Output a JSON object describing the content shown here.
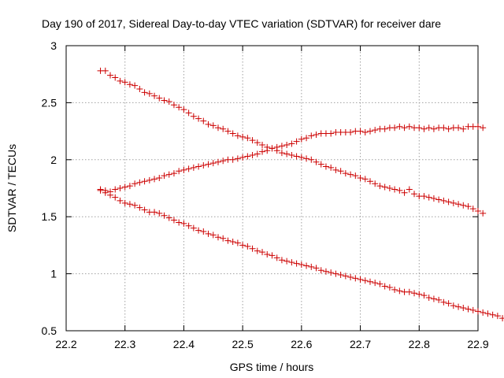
{
  "chart_data": {
    "type": "scatter",
    "title": "Day 190 of 2017, Sidereal Day-to-day VTEC variation (SDTVAR) for receiver dare",
    "xlabel": "GPS time / hours",
    "ylabel": "SDTVAR / TECUs",
    "xlim": [
      22.2,
      22.9
    ],
    "ylim": [
      0.5,
      3.0
    ],
    "xticks": [
      "22.2",
      "22.3",
      "22.4",
      "22.5",
      "22.6",
      "22.7",
      "22.8",
      "22.9"
    ],
    "yticks": [
      "0.5",
      "1",
      "1.5",
      "2",
      "2.5",
      "3"
    ],
    "grid": true,
    "marker": "+",
    "color": "#cc0000",
    "series": [
      {
        "name": "series-1",
        "x_start": 22.2583,
        "x_step": 0.008333,
        "values": [
          2.78,
          2.78,
          2.74,
          2.72,
          2.69,
          2.68,
          2.66,
          2.65,
          2.62,
          2.59,
          2.58,
          2.56,
          2.54,
          2.52,
          2.51,
          2.48,
          2.46,
          2.44,
          2.41,
          2.38,
          2.36,
          2.34,
          2.31,
          2.3,
          2.28,
          2.27,
          2.25,
          2.23,
          2.21,
          2.2,
          2.19,
          2.17,
          2.15,
          2.13,
          2.11,
          2.1,
          2.08,
          2.06,
          2.05,
          2.04,
          2.03,
          2.02,
          2.01,
          2.0,
          1.98,
          1.96,
          1.94,
          1.93,
          1.91,
          1.9,
          1.88,
          1.87,
          1.86,
          1.84,
          1.83,
          1.81,
          1.79,
          1.77,
          1.76,
          1.75,
          1.74,
          1.73,
          1.71,
          1.74,
          1.7,
          1.68,
          1.68,
          1.67,
          1.66,
          1.65,
          1.64,
          1.63,
          1.62,
          1.61,
          1.6,
          1.59,
          1.57,
          1.55,
          1.53
        ]
      },
      {
        "name": "series-2",
        "x_start": 22.2583,
        "x_step": 0.008333,
        "values": [
          1.74,
          1.73,
          1.72,
          1.74,
          1.75,
          1.76,
          1.77,
          1.79,
          1.8,
          1.81,
          1.82,
          1.83,
          1.84,
          1.86,
          1.87,
          1.88,
          1.9,
          1.91,
          1.92,
          1.93,
          1.94,
          1.95,
          1.96,
          1.97,
          1.98,
          1.99,
          2.0,
          2.0,
          2.01,
          2.02,
          2.03,
          2.04,
          2.05,
          2.07,
          2.08,
          2.1,
          2.11,
          2.12,
          2.13,
          2.14,
          2.16,
          2.18,
          2.19,
          2.21,
          2.22,
          2.23,
          2.23,
          2.23,
          2.24,
          2.24,
          2.24,
          2.24,
          2.25,
          2.25,
          2.24,
          2.25,
          2.26,
          2.27,
          2.27,
          2.28,
          2.28,
          2.29,
          2.28,
          2.29,
          2.28,
          2.28,
          2.27,
          2.28,
          2.27,
          2.28,
          2.28,
          2.27,
          2.28,
          2.28,
          2.27,
          2.29,
          2.29,
          2.29,
          2.28
        ]
      },
      {
        "name": "series-3",
        "x_start": 22.2583,
        "x_step": 0.008333,
        "values": [
          1.73,
          1.71,
          1.69,
          1.67,
          1.64,
          1.62,
          1.61,
          1.6,
          1.58,
          1.56,
          1.54,
          1.54,
          1.53,
          1.51,
          1.49,
          1.47,
          1.45,
          1.44,
          1.42,
          1.4,
          1.38,
          1.37,
          1.35,
          1.34,
          1.32,
          1.31,
          1.29,
          1.28,
          1.27,
          1.25,
          1.24,
          1.22,
          1.2,
          1.19,
          1.17,
          1.16,
          1.14,
          1.12,
          1.11,
          1.1,
          1.09,
          1.08,
          1.07,
          1.06,
          1.05,
          1.03,
          1.02,
          1.01,
          1.0,
          0.99,
          0.98,
          0.97,
          0.96,
          0.95,
          0.94,
          0.93,
          0.92,
          0.91,
          0.89,
          0.88,
          0.86,
          0.85,
          0.84,
          0.84,
          0.83,
          0.82,
          0.81,
          0.79,
          0.78,
          0.77,
          0.75,
          0.74,
          0.72,
          0.71,
          0.7,
          0.69,
          0.68,
          0.67,
          0.66,
          0.65,
          0.64,
          0.63,
          0.61,
          0.6
        ]
      }
    ]
  }
}
